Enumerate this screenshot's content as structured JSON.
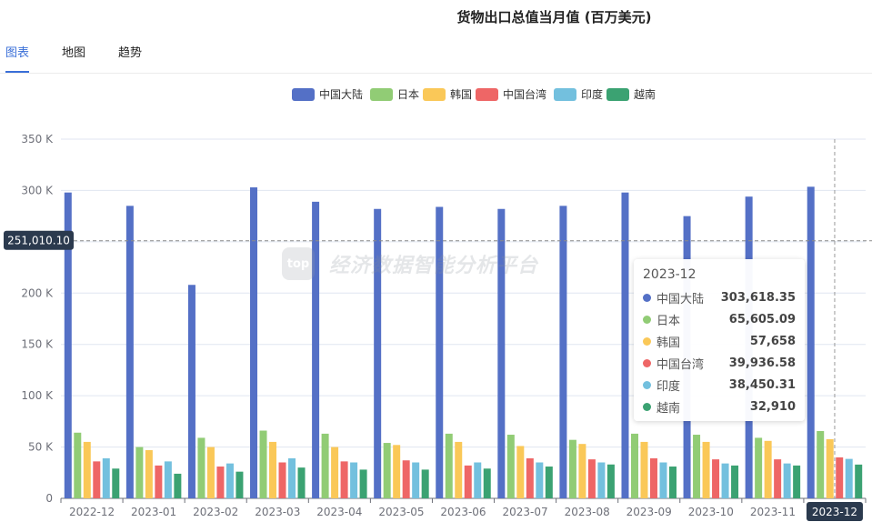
{
  "header": {
    "title": "货物出口总值当月值 (百万美元)"
  },
  "tabs": [
    {
      "label": "图表",
      "active": true
    },
    {
      "label": "地图",
      "active": false
    },
    {
      "label": "趋势",
      "active": false
    }
  ],
  "watermark": {
    "text": "经济数据智能分析平台",
    "logo": "top"
  },
  "chart_data": {
    "type": "bar",
    "title": "货物出口总值当月值 (百万美元)",
    "categories": [
      "2022-12",
      "2023-01",
      "2023-02",
      "2023-03",
      "2023-04",
      "2023-05",
      "2023-06",
      "2023-07",
      "2023-08",
      "2023-09",
      "2023-10",
      "2023-11",
      "2023-12"
    ],
    "series": [
      {
        "name": "中国大陆",
        "color": "#5470c6",
        "values": [
          298000,
          285000,
          208000,
          303000,
          289000,
          282000,
          284000,
          282000,
          285000,
          298000,
          275000,
          294000,
          303618.35
        ]
      },
      {
        "name": "日本",
        "color": "#91cc75",
        "values": [
          64000,
          50000,
          59000,
          66000,
          63000,
          54000,
          63000,
          62000,
          57000,
          63000,
          62000,
          59000,
          65605.09
        ]
      },
      {
        "name": "韩国",
        "color": "#fac858",
        "values": [
          55000,
          47000,
          50000,
          55000,
          50000,
          52000,
          55000,
          51000,
          53000,
          55000,
          55000,
          56000,
          57658
        ]
      },
      {
        "name": "中国台湾",
        "color": "#ee6666",
        "values": [
          36000,
          32000,
          31000,
          35000,
          36000,
          37000,
          32000,
          39000,
          38000,
          39000,
          38000,
          38000,
          39936.58
        ]
      },
      {
        "name": "印度",
        "color": "#73c0de",
        "values": [
          39000,
          36000,
          34000,
          39000,
          35000,
          35000,
          35000,
          35000,
          35000,
          35000,
          34000,
          34000,
          38450.31
        ]
      },
      {
        "name": "越南",
        "color": "#3ba272",
        "values": [
          29000,
          24000,
          26000,
          30000,
          28000,
          28000,
          29000,
          31000,
          33000,
          31000,
          32000,
          32000,
          32910
        ]
      }
    ],
    "y_ticks": [
      "0",
      "50 K",
      "100 K",
      "150 K",
      "200 K",
      "250 K",
      "300 K",
      "350 K"
    ],
    "ylim": [
      0,
      350000
    ],
    "reference_line": {
      "value": 251010.1,
      "label": "251,010.10"
    },
    "highlighted_category": "2023-12",
    "legend_position": "top-center",
    "grid": true
  },
  "tooltip": {
    "title": "2023-12",
    "rows": [
      {
        "name": "中国大陆",
        "value": "303,618.35",
        "color": "#5470c6"
      },
      {
        "name": "日本",
        "value": "65,605.09",
        "color": "#91cc75"
      },
      {
        "name": "韩国",
        "value": "57,658",
        "color": "#fac858"
      },
      {
        "name": "中国台湾",
        "value": "39,936.58",
        "color": "#ee6666"
      },
      {
        "name": "印度",
        "value": "38,450.31",
        "color": "#73c0de"
      },
      {
        "name": "越南",
        "value": "32,910",
        "color": "#3ba272"
      }
    ]
  }
}
